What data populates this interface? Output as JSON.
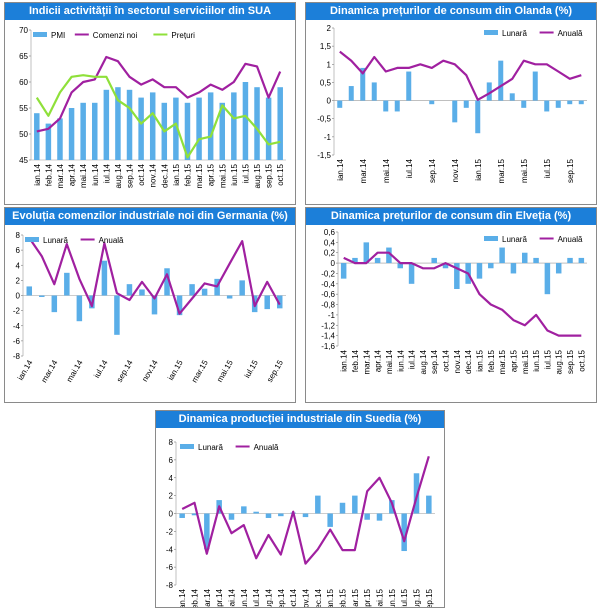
{
  "chart_data": [
    {
      "id": "sua",
      "type": "bar-line",
      "title": "Indicii activității în sectorul serviciilor din SUA",
      "categories": [
        "ian.14",
        "feb.14",
        "mar.14",
        "apr.14",
        "mai.14",
        "iun.14",
        "iul.14",
        "aug.14",
        "sep.14",
        "oct.14",
        "nov.14",
        "dec.14",
        "ian.15",
        "feb.15",
        "mar.15",
        "apr.15",
        "mai.15",
        "iun.15",
        "iul.15",
        "aug.15",
        "sep.15",
        "oct.15"
      ],
      "x_tick_labels": [
        "ian.14",
        "feb.14",
        "mar.14",
        "apr.14",
        "mai.14",
        "iun.14",
        "iul.14",
        "aug.14",
        "sep.14",
        "oct.14",
        "nov.14",
        "dec.14",
        "ian.15",
        "feb.15",
        "mar.15",
        "apr.15",
        "mai.15",
        "iun.15",
        "iul.15",
        "aug.15",
        "sep.15",
        "oct.15"
      ],
      "ylim": [
        45,
        70
      ],
      "yticks": [
        45,
        50,
        55,
        60,
        65,
        70
      ],
      "legend": [
        "PMI",
        "Comenzi noi",
        "Prețuri"
      ],
      "legend_position": "top-left",
      "series": [
        {
          "name": "PMI",
          "kind": "bar",
          "color": "#5aaee8",
          "values": [
            54,
            52,
            53,
            55,
            56,
            56,
            58.5,
            59,
            58.5,
            57,
            58,
            56,
            57,
            56,
            57,
            58,
            56,
            58,
            60,
            59,
            57,
            59
          ]
        },
        {
          "name": "Comenzi noi",
          "kind": "line",
          "color": "#a020a0",
          "values": [
            50.5,
            51,
            53,
            58,
            60,
            60.5,
            64.8,
            64,
            61,
            59.5,
            60.5,
            59,
            59,
            57,
            58,
            59.5,
            58.5,
            60,
            63.5,
            63,
            57,
            62
          ]
        },
        {
          "name": "Prețuri",
          "kind": "line",
          "color": "#8fe03a",
          "values": [
            57,
            53.5,
            58,
            61,
            61.3,
            61,
            61,
            56.5,
            55,
            52,
            54,
            50.5,
            52,
            45.5,
            49,
            49.5,
            55.5,
            53,
            53.5,
            51,
            48,
            48.5
          ]
        }
      ]
    },
    {
      "id": "olanda",
      "type": "bar-line",
      "title": "Dinamica prețurilor de consum din Olanda (%)",
      "categories": [
        "ian.14",
        "feb.14",
        "mar.14",
        "apr.14",
        "mai.14",
        "iun.14",
        "iul.14",
        "aug.14",
        "sep.14",
        "oct.14",
        "nov.14",
        "dec.14",
        "ian.15",
        "feb.15",
        "mar.15",
        "apr.15",
        "mai.15",
        "iun.15",
        "iul.15",
        "aug.15",
        "sep.15",
        "oct.15"
      ],
      "x_tick_labels": [
        "ian.14",
        "",
        "mar.14",
        "",
        "mai.14",
        "",
        "iul.14",
        "",
        "sep.14",
        "",
        "nov.14",
        "",
        "ian.15",
        "",
        "mar.15",
        "",
        "mai.15",
        "",
        "iul.15",
        "",
        "sep.15",
        ""
      ],
      "ylim": [
        -1.5,
        2
      ],
      "yticks": [
        -1.5,
        -1,
        -0.5,
        0,
        0.5,
        1,
        1.5,
        2
      ],
      "legend": [
        "Lunară",
        "Anuală"
      ],
      "legend_position": "top-right",
      "series": [
        {
          "name": "Lunară",
          "kind": "bar",
          "color": "#5aaee8",
          "values": [
            -0.2,
            0.4,
            0.9,
            0.5,
            -0.3,
            -0.3,
            0.8,
            0,
            -0.1,
            0,
            -0.6,
            -0.2,
            -0.9,
            0.5,
            1.1,
            0.2,
            -0.2,
            0.8,
            -0.3,
            -0.2,
            -0.1,
            -0.1
          ]
        },
        {
          "name": "Anuală",
          "kind": "line",
          "color": "#a020a0",
          "values": [
            1.35,
            1.1,
            0.75,
            1.2,
            0.8,
            0.9,
            0.9,
            1.0,
            0.9,
            1.1,
            1.0,
            0.7,
            0.02,
            0.2,
            0.4,
            0.6,
            1.1,
            1.0,
            1.0,
            0.8,
            0.6,
            0.7
          ]
        }
      ]
    },
    {
      "id": "germania",
      "type": "bar-line",
      "title": "Evoluția comenzilor industriale noi din Germania (%)",
      "categories": [
        "ian.14",
        "feb.14",
        "mar.14",
        "apr.14",
        "mai.14",
        "iun.14",
        "iul.14",
        "aug.14",
        "sep.14",
        "oct.14",
        "nov.14",
        "dec.14",
        "ian.15",
        "feb.15",
        "mar.15",
        "apr.15",
        "mai.15",
        "iun.15",
        "iul.15",
        "aug.15",
        "sep.15"
      ],
      "x_tick_labels": [
        "ian.14",
        "",
        "mar.14",
        "",
        "mai.14",
        "",
        "iul.14",
        "",
        "sep.14",
        "",
        "nov.14",
        "",
        "ian.15",
        "",
        "mar.15",
        "",
        "mai.15",
        "",
        "iul.15",
        "",
        "sep.15"
      ],
      "ylim": [
        -8,
        8
      ],
      "yticks": [
        -8,
        -6,
        -4,
        -2,
        0,
        2,
        4,
        6,
        8
      ],
      "legend": [
        "Lunară",
        "Anuală"
      ],
      "legend_position": "top-left",
      "series": [
        {
          "name": "Lunară",
          "kind": "bar",
          "color": "#5aaee8",
          "values": [
            1.2,
            -0.2,
            -2.2,
            3,
            -3.4,
            -1.7,
            4.6,
            -5.2,
            1.5,
            0.8,
            -2.5,
            3.6,
            -2.6,
            1.5,
            0.9,
            2.2,
            -0.4,
            2,
            -2.2,
            -1.8,
            -1.7
          ]
        },
        {
          "name": "Anuală",
          "kind": "line",
          "color": "#a020a0",
          "values": [
            7.6,
            5.2,
            1.5,
            6.8,
            2.2,
            -1.4,
            6.9,
            0.3,
            -0.6,
            1.8,
            -0.4,
            2.8,
            -2.4,
            -0.4,
            1.6,
            1.2,
            4.2,
            7.2,
            -1.4,
            1.8,
            -1.2
          ]
        }
      ]
    },
    {
      "id": "elvetia",
      "type": "bar-line",
      "title": "Dinamica prețurilor de consum din Elveția (%)",
      "categories": [
        "ian.14",
        "feb.14",
        "mar.14",
        "apr.14",
        "mai.14",
        "iun.14",
        "iul.14",
        "aug.14",
        "sep.14",
        "oct.14",
        "nov.14",
        "dec.14",
        "ian.15",
        "feb.15",
        "mar.15",
        "apr.15",
        "mai.15",
        "iun.15",
        "iul.15",
        "aug.15",
        "sep.15",
        "oct.15"
      ],
      "x_tick_labels": [
        "ian.14",
        "feb.14",
        "mar.14",
        "apr.14",
        "mai.14",
        "iun.14",
        "iul.14",
        "aug.14",
        "sep.14",
        "oct.14",
        "nov.14",
        "dec.14",
        "ian.15",
        "feb.15",
        "mar.15",
        "apr.15",
        "mai.15",
        "iun.15",
        "iul.15",
        "aug.15",
        "sep.15",
        "oct.15"
      ],
      "ylim": [
        -1.6,
        0.6
      ],
      "yticks": [
        -1.6,
        -1.4,
        -1.2,
        -1,
        -0.8,
        -0.6,
        -0.4,
        -0.2,
        0,
        0.2,
        0.4,
        0.6
      ],
      "legend": [
        "Lunară",
        "Anuală"
      ],
      "legend_position": "top-right",
      "series": [
        {
          "name": "Lunară",
          "kind": "bar",
          "color": "#5aaee8",
          "values": [
            -0.3,
            0.1,
            0.4,
            0.1,
            0.3,
            -0.1,
            -0.4,
            0,
            0.1,
            -0.1,
            -0.5,
            -0.4,
            -0.3,
            -0.1,
            0.3,
            -0.2,
            0.2,
            0.1,
            -0.6,
            -0.2,
            0.1,
            0.1
          ]
        },
        {
          "name": "Anuală",
          "kind": "line",
          "color": "#a020a0",
          "values": [
            0.1,
            0,
            0,
            0.2,
            0.2,
            0,
            0,
            -0.1,
            -0.1,
            0,
            -0.1,
            -0.2,
            -0.6,
            -0.8,
            -0.9,
            -1.1,
            -1.2,
            -1.0,
            -1.3,
            -1.4,
            -1.4,
            -1.4
          ]
        }
      ]
    },
    {
      "id": "suedia",
      "type": "bar-line",
      "title": "Dinamica producției industriale din Suedia (%)",
      "categories": [
        "ian.14",
        "feb.14",
        "mar.14",
        "apr.14",
        "mai.14",
        "iun.14",
        "iul.14",
        "aug.14",
        "sep.14",
        "oct.14",
        "nov.14",
        "dec.14",
        "ian.15",
        "feb.15",
        "mar.15",
        "apr.15",
        "mai.15",
        "iun.15",
        "iul.15",
        "aug.15",
        "sep.15"
      ],
      "x_tick_labels": [
        "ian.14",
        "feb.14",
        "mar.14",
        "apr.14",
        "mai.14",
        "iun.14",
        "iul.14",
        "aug.14",
        "sep.14",
        "oct.14",
        "nov.14",
        "dec.14",
        "ian.15",
        "feb.15",
        "mar.15",
        "apr.15",
        "mai.15",
        "iun.15",
        "iul.15",
        "aug.15",
        "sep.15"
      ],
      "ylim": [
        -8,
        8
      ],
      "yticks": [
        -8,
        -6,
        -4,
        -2,
        0,
        2,
        4,
        6,
        8
      ],
      "legend": [
        "Lunară",
        "Anuală"
      ],
      "legend_position": "top-left",
      "series": [
        {
          "name": "Lunară",
          "kind": "bar",
          "color": "#5aaee8",
          "values": [
            -0.5,
            -0.2,
            -4,
            1.5,
            -0.7,
            0.8,
            0.2,
            -0.5,
            -0.3,
            0.1,
            -0.4,
            2,
            -1.5,
            1.2,
            2,
            -0.7,
            -0.8,
            1.5,
            -4.2,
            4.5,
            2
          ]
        },
        {
          "name": "Anuală",
          "kind": "line",
          "color": "#a020a0",
          "values": [
            0.5,
            1.2,
            -4.5,
            0.8,
            -2.2,
            -1.3,
            -5,
            -2.4,
            -4.6,
            0.2,
            -5.6,
            -4,
            -1.8,
            -4.1,
            -4.1,
            2.5,
            4,
            1.2,
            -3.1,
            1.8,
            6.4
          ]
        }
      ]
    }
  ]
}
